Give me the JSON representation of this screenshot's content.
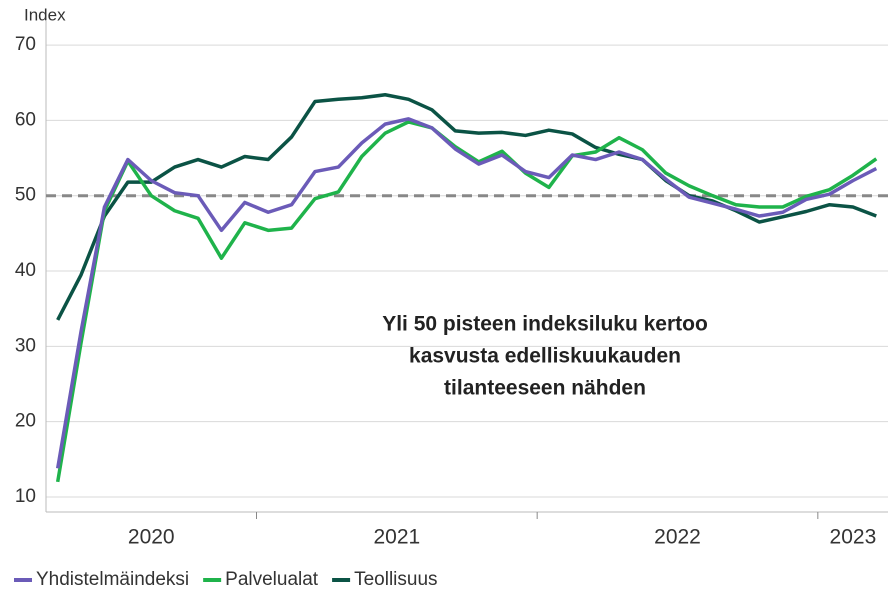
{
  "chart_data": {
    "type": "line",
    "y_label": "Index",
    "annotation": [
      "Yli 50 pisteen indeksiluku kertoo",
      "kasvusta edelliskuukauden",
      "tilanteeseen nähden"
    ],
    "categories": [
      "2020",
      "2020",
      "2020",
      "2020",
      "2020",
      "2020",
      "2020",
      "2020",
      "2020",
      "2021",
      "2021",
      "2021",
      "2021",
      "2021",
      "2021",
      "2021",
      "2021",
      "2021",
      "2021",
      "2021",
      "2021",
      "2022",
      "2022",
      "2022",
      "2022",
      "2022",
      "2022",
      "2022",
      "2022",
      "2022",
      "2022",
      "2022",
      "2022",
      "2023",
      "2023",
      "2023"
    ],
    "series": [
      {
        "name": "Yhdistelmäindeksi",
        "color": "#6b5bb8",
        "values": [
          13.8,
          32,
          48.5,
          54.8,
          52,
          50.4,
          50,
          45.4,
          49.1,
          47.8,
          48.8,
          53.2,
          53.8,
          57,
          59.5,
          60.2,
          59,
          56.2,
          54.2,
          55.4,
          53.2,
          52.4,
          55.4,
          54.8,
          55.8,
          54.8,
          52.2,
          49.8,
          49,
          48.2,
          47.3,
          47.8,
          49.5,
          50.2,
          52,
          53.6
        ]
      },
      {
        "name": "Palvelualat",
        "color": "#1fb34b",
        "values": [
          12,
          30.5,
          48,
          54.6,
          50,
          48,
          47,
          41.7,
          46.4,
          45.4,
          45.7,
          49.6,
          50.5,
          55.2,
          58.3,
          59.8,
          59,
          56.5,
          54.5,
          55.9,
          53,
          51.1,
          55.3,
          55.8,
          57.7,
          56.1,
          53,
          51.3,
          50,
          48.8,
          48.5,
          48.5,
          49.9,
          50.8,
          52.7,
          54.9
        ]
      },
      {
        "name": "Teollisuus",
        "color": "#0b5345",
        "values": [
          33.5,
          39.5,
          47.3,
          51.8,
          51.8,
          53.8,
          54.8,
          53.8,
          55.2,
          54.8,
          57.8,
          62.5,
          62.8,
          63,
          63.4,
          62.8,
          61.4,
          58.6,
          58.3,
          58.4,
          58,
          58.7,
          58.2,
          56.4,
          55.5,
          54.8,
          52,
          50,
          49.3,
          48,
          46.5,
          47.2,
          47.9,
          48.8,
          48.5,
          47.3
        ]
      }
    ],
    "ylim": [
      8,
      72
    ],
    "yticks": [
      10,
      20,
      30,
      40,
      50,
      60,
      70
    ],
    "grid": true,
    "reference_line": 50,
    "legend": "bottom"
  }
}
